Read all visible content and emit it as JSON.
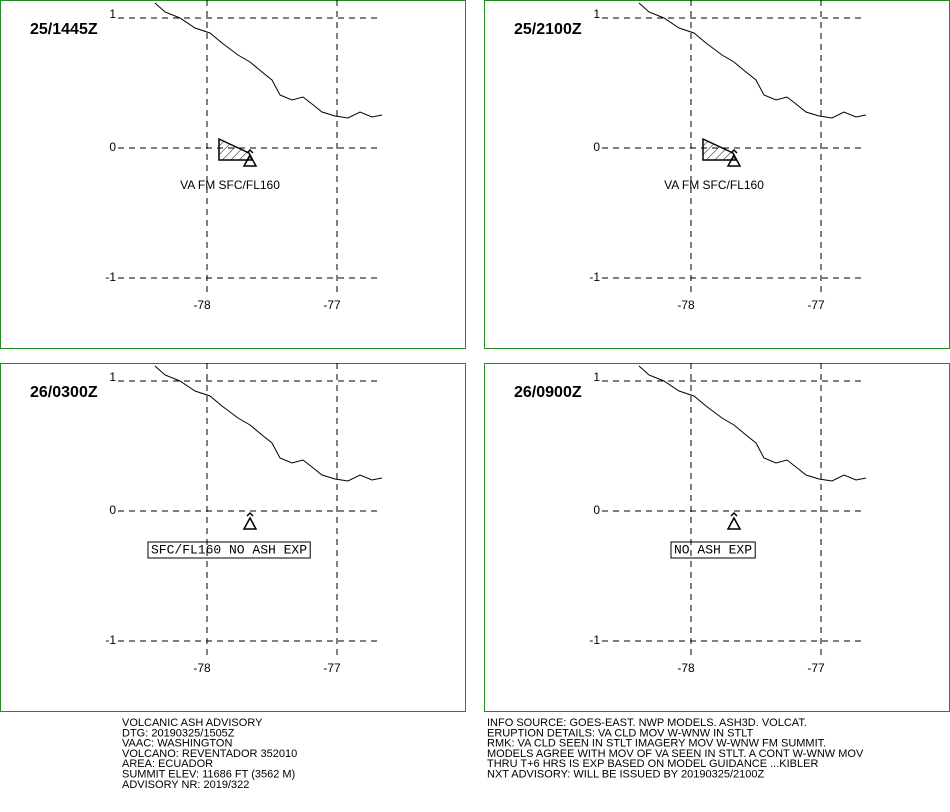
{
  "panels": [
    {
      "time": "25/1445Z",
      "ash_label": "VA FM SFC/FL160",
      "ash_area": true,
      "label_boxed": false
    },
    {
      "time": "25/2100Z",
      "ash_label": "VA FM SFC/FL160",
      "ash_area": true,
      "label_boxed": false
    },
    {
      "time": "26/0300Z",
      "ash_label": "SFC/FL160 NO ASH EXP",
      "ash_area": false,
      "label_boxed": true
    },
    {
      "time": "26/0900Z",
      "ash_label": "NO ASH EXP",
      "ash_area": false,
      "label_boxed": true
    }
  ],
  "lat_labels": [
    "1",
    "0",
    "-1"
  ],
  "lon_labels": [
    "-78",
    "-77"
  ],
  "advisory_left": [
    "VOLCANIC ASH ADVISORY",
    "DTG: 20190325/1505Z",
    "VAAC: WASHINGTON",
    "VOLCANO: REVENTADOR 352010",
    "AREA: ECUADOR",
    "SUMMIT ELEV: 11686 FT (3562 M)",
    "ADVISORY NR: 2019/322"
  ],
  "advisory_right": [
    "INFO SOURCE: GOES-EAST. NWP MODELS. ASH3D. VOLCAT.",
    "ERUPTION DETAILS: VA CLD MOV W-WNW IN STLT",
    "RMK: VA CLD SEEN IN STLT IMAGERY MOV W-WNW FM SUMMIT.",
    "MODELS AGREE WITH MOV OF VA SEEN IN STLT. A CONT W-WNW MOV",
    "THRU T+6 HRS IS EXP BASED ON MODEL GUIDANCE ...KIBLER",
    "NXT ADVISORY: WILL BE ISSUED BY 20190325/2100Z"
  ]
}
